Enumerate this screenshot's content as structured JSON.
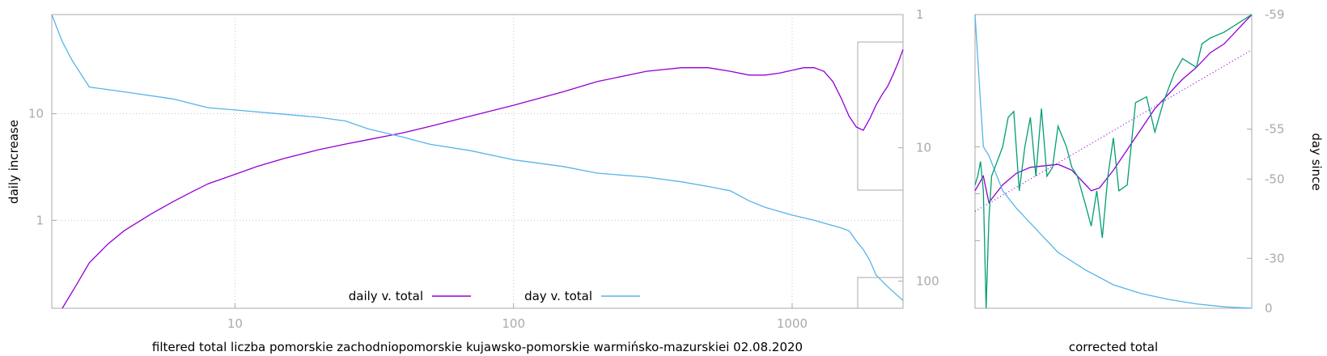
{
  "colors": {
    "daily": "#9400d3",
    "day": "#56b4e9",
    "raw": "#009e73",
    "frame": "#aaaaaa"
  },
  "chart_data": [
    {
      "type": "line",
      "xscale": "log",
      "yscale": "log",
      "xlim": [
        2.2,
        2500
      ],
      "ylim": [
        0.15,
        85
      ],
      "y2scale": "log",
      "y2lim": [
        1,
        160
      ],
      "y2reversed": true,
      "grid": true,
      "xticks": [
        10,
        100,
        1000
      ],
      "xtick_labels": [
        "10",
        "100",
        "1000"
      ],
      "yticks": [
        1,
        10
      ],
      "ytick_labels": [
        "1",
        "10"
      ],
      "y2ticks": [
        1,
        10,
        100
      ],
      "y2tick_labels": [
        "1",
        "10",
        "100"
      ],
      "xlabel": "filtered total liczba pomorskie zachodniopomorskie kujawsko-pomorskie warmińsko-mazurskiei 02.08.2020",
      "ylabel": "daily increase",
      "legend_position": "bottom-center",
      "legend": [
        {
          "label": "daily v. total",
          "color_key": "daily"
        },
        {
          "label": "day v. total",
          "color_key": "day"
        }
      ],
      "series": [
        {
          "name": "daily v. total",
          "color_key": "daily",
          "axis": "y",
          "points": [
            [
              2.4,
              0.15
            ],
            [
              2.7,
              0.25
            ],
            [
              3,
              0.4
            ],
            [
              3.5,
              0.6
            ],
            [
              4,
              0.8
            ],
            [
              5,
              1.15
            ],
            [
              6,
              1.5
            ],
            [
              7,
              1.85
            ],
            [
              8,
              2.2
            ],
            [
              10,
              2.7
            ],
            [
              12,
              3.2
            ],
            [
              15,
              3.8
            ],
            [
              20,
              4.6
            ],
            [
              25,
              5.2
            ],
            [
              30,
              5.7
            ],
            [
              40,
              6.6
            ],
            [
              50,
              7.6
            ],
            [
              70,
              9.5
            ],
            [
              100,
              12
            ],
            [
              150,
              16
            ],
            [
              200,
              20
            ],
            [
              300,
              25
            ],
            [
              400,
              27
            ],
            [
              500,
              27
            ],
            [
              600,
              25
            ],
            [
              700,
              23
            ],
            [
              800,
              23
            ],
            [
              900,
              24
            ],
            [
              1000,
              25.5
            ],
            [
              1100,
              27
            ],
            [
              1200,
              27
            ],
            [
              1300,
              25
            ],
            [
              1400,
              20
            ],
            [
              1500,
              14
            ],
            [
              1600,
              9.5
            ],
            [
              1700,
              7.5
            ],
            [
              1800,
              7
            ],
            [
              1900,
              9
            ],
            [
              2000,
              12
            ],
            [
              2100,
              15
            ],
            [
              2200,
              18
            ],
            [
              2300,
              23
            ],
            [
              2400,
              30
            ],
            [
              2500,
              40
            ]
          ]
        },
        {
          "name": "day v. total",
          "color_key": "day",
          "axis": "y2",
          "points": [
            [
              2.2,
              1
            ],
            [
              2.4,
              1.6
            ],
            [
              2.6,
              2.2
            ],
            [
              2.8,
              2.8
            ],
            [
              3,
              3.5
            ],
            [
              4,
              3.8
            ],
            [
              6,
              4.3
            ],
            [
              8,
              5
            ],
            [
              10,
              5.2
            ],
            [
              15,
              5.6
            ],
            [
              20,
              5.9
            ],
            [
              25,
              6.3
            ],
            [
              30,
              7.2
            ],
            [
              40,
              8.3
            ],
            [
              50,
              9.4
            ],
            [
              70,
              10.5
            ],
            [
              100,
              12.3
            ],
            [
              150,
              13.8
            ],
            [
              200,
              15.5
            ],
            [
              300,
              16.6
            ],
            [
              400,
              18
            ],
            [
              500,
              19.5
            ],
            [
              600,
              21
            ],
            [
              700,
              25
            ],
            [
              800,
              28
            ],
            [
              1000,
              32
            ],
            [
              1200,
              35
            ],
            [
              1500,
              40
            ],
            [
              1600,
              42
            ],
            [
              1700,
              50
            ],
            [
              1800,
              58
            ],
            [
              1900,
              70
            ],
            [
              2000,
              90
            ],
            [
              2200,
              110
            ],
            [
              2500,
              140
            ]
          ]
        }
      ]
    },
    {
      "type": "line",
      "xlabel": "corrected total",
      "ylabel": "day since",
      "ytick_labels": [],
      "y2ticks": [
        -59,
        -55,
        -50,
        -30,
        0
      ],
      "y2tick_labels": [
        "-59",
        "-55",
        "-50",
        "-30",
        "0"
      ],
      "series": [
        {
          "name": "daily v. total",
          "color_key": "daily",
          "points": [
            [
              0,
              0.6
            ],
            [
              0.03,
              0.55
            ],
            [
              0.05,
              0.64
            ],
            [
              0.1,
              0.58
            ],
            [
              0.15,
              0.54
            ],
            [
              0.2,
              0.52
            ],
            [
              0.3,
              0.51
            ],
            [
              0.35,
              0.53
            ],
            [
              0.4,
              0.58
            ],
            [
              0.42,
              0.6
            ],
            [
              0.45,
              0.59
            ],
            [
              0.5,
              0.53
            ],
            [
              0.55,
              0.46
            ],
            [
              0.6,
              0.39
            ],
            [
              0.65,
              0.32
            ],
            [
              0.7,
              0.27
            ],
            [
              0.75,
              0.22
            ],
            [
              0.8,
              0.18
            ],
            [
              0.85,
              0.13
            ],
            [
              0.9,
              0.1
            ],
            [
              0.95,
              0.05
            ],
            [
              1,
              0.0
            ]
          ]
        },
        {
          "name": "trend",
          "color_key": "daily",
          "dotted": true,
          "points": [
            [
              0,
              0.67
            ],
            [
              1,
              0.12
            ]
          ]
        },
        {
          "name": "day v. total",
          "color_key": "day",
          "points": [
            [
              0,
              0.0
            ],
            [
              0.02,
              0.3
            ],
            [
              0.03,
              0.45
            ],
            [
              0.05,
              0.48
            ],
            [
              0.1,
              0.6
            ],
            [
              0.15,
              0.66
            ],
            [
              0.2,
              0.71
            ],
            [
              0.25,
              0.76
            ],
            [
              0.3,
              0.81
            ],
            [
              0.4,
              0.87
            ],
            [
              0.5,
              0.92
            ],
            [
              0.6,
              0.95
            ],
            [
              0.7,
              0.97
            ],
            [
              0.8,
              0.985
            ],
            [
              0.9,
              0.995
            ],
            [
              1,
              1.0
            ]
          ]
        },
        {
          "name": "raw daily",
          "color_key": "raw",
          "points": [
            [
              0,
              0.58
            ],
            [
              0.01,
              0.55
            ],
            [
              0.02,
              0.5
            ],
            [
              0.03,
              0.6
            ],
            [
              0.04,
              1.0
            ],
            [
              0.05,
              0.7
            ],
            [
              0.06,
              0.55
            ],
            [
              0.08,
              0.5
            ],
            [
              0.1,
              0.45
            ],
            [
              0.12,
              0.35
            ],
            [
              0.14,
              0.33
            ],
            [
              0.16,
              0.6
            ],
            [
              0.18,
              0.45
            ],
            [
              0.2,
              0.35
            ],
            [
              0.22,
              0.55
            ],
            [
              0.24,
              0.32
            ],
            [
              0.26,
              0.55
            ],
            [
              0.28,
              0.52
            ],
            [
              0.3,
              0.38
            ],
            [
              0.33,
              0.45
            ],
            [
              0.35,
              0.52
            ],
            [
              0.37,
              0.55
            ],
            [
              0.4,
              0.65
            ],
            [
              0.42,
              0.72
            ],
            [
              0.44,
              0.6
            ],
            [
              0.46,
              0.76
            ],
            [
              0.48,
              0.55
            ],
            [
              0.5,
              0.42
            ],
            [
              0.52,
              0.6
            ],
            [
              0.55,
              0.58
            ],
            [
              0.58,
              0.3
            ],
            [
              0.62,
              0.28
            ],
            [
              0.65,
              0.4
            ],
            [
              0.68,
              0.3
            ],
            [
              0.7,
              0.25
            ],
            [
              0.72,
              0.2
            ],
            [
              0.75,
              0.15
            ],
            [
              0.8,
              0.18
            ],
            [
              0.82,
              0.1
            ],
            [
              0.85,
              0.08
            ],
            [
              0.9,
              0.06
            ],
            [
              0.95,
              0.03
            ],
            [
              1,
              0.0
            ]
          ]
        }
      ]
    }
  ]
}
